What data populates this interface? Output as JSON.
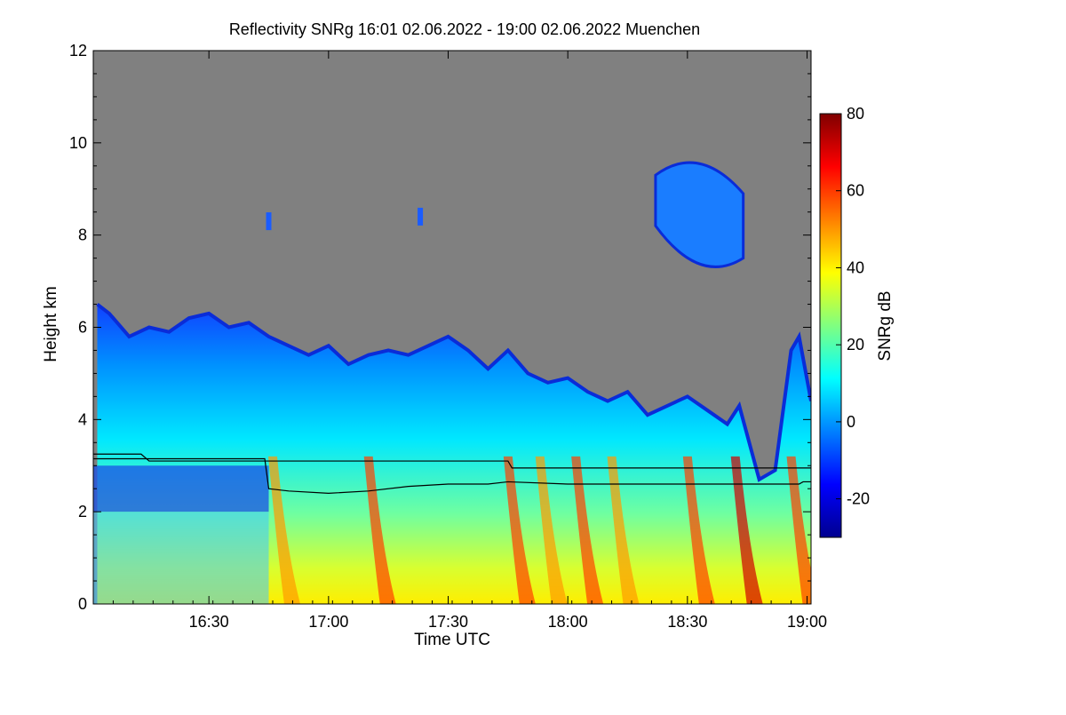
{
  "chart_data": {
    "type": "heatmap",
    "title": "Reflectivity SNRg   16:01 02.06.2022 - 19:00 02.06.2022 Muenchen",
    "xlabel": "Time UTC",
    "ylabel": "Height km",
    "x_range": [
      "16:01",
      "19:01"
    ],
    "x_ticks": [
      {
        "label": "16:30",
        "minutes": 30
      },
      {
        "label": "17:00",
        "minutes": 60
      },
      {
        "label": "17:30",
        "minutes": 90
      },
      {
        "label": "18:00",
        "minutes": 120
      },
      {
        "label": "18:30",
        "minutes": 150
      },
      {
        "label": "19:00",
        "minutes": 180
      }
    ],
    "ylim": [
      0,
      12
    ],
    "y_ticks": [
      "0",
      "2",
      "4",
      "6",
      "8",
      "10",
      "12"
    ],
    "no_signal_color": "#808080",
    "colorbar": {
      "label": "SNRg dB",
      "range": [
        -30,
        80
      ],
      "ticks": [
        "-20",
        "0",
        "20",
        "40",
        "60",
        "80"
      ],
      "colormap": [
        "#00008f",
        "#0000ff",
        "#0080ff",
        "#00ffff",
        "#80ff80",
        "#ffff00",
        "#ff8000",
        "#ff0000",
        "#800000"
      ]
    },
    "cloud_top_km": [
      [
        2,
        6.5
      ],
      [
        5,
        6.3
      ],
      [
        10,
        5.8
      ],
      [
        15,
        6.0
      ],
      [
        20,
        5.9
      ],
      [
        25,
        6.2
      ],
      [
        30,
        6.3
      ],
      [
        35,
        6.0
      ],
      [
        40,
        6.1
      ],
      [
        45,
        5.8
      ],
      [
        50,
        5.6
      ],
      [
        55,
        5.4
      ],
      [
        60,
        5.6
      ],
      [
        65,
        5.2
      ],
      [
        70,
        5.4
      ],
      [
        75,
        5.5
      ],
      [
        80,
        5.4
      ],
      [
        85,
        5.6
      ],
      [
        90,
        5.8
      ],
      [
        95,
        5.5
      ],
      [
        100,
        5.1
      ],
      [
        105,
        5.5
      ],
      [
        110,
        5.0
      ],
      [
        115,
        4.8
      ],
      [
        120,
        4.9
      ],
      [
        125,
        4.6
      ],
      [
        130,
        4.4
      ],
      [
        135,
        4.6
      ],
      [
        140,
        4.1
      ],
      [
        145,
        4.3
      ],
      [
        150,
        4.5
      ],
      [
        155,
        4.2
      ],
      [
        160,
        3.9
      ],
      [
        163,
        4.3
      ],
      [
        168,
        2.7
      ],
      [
        172,
        2.9
      ],
      [
        176,
        5.5
      ],
      [
        178,
        5.8
      ],
      [
        181,
        4.4
      ]
    ],
    "upper_cloud": {
      "start": "18:22",
      "end": "18:44",
      "base_km": 7.2,
      "top_km": 9.8
    },
    "line_series": [
      {
        "points": [
          [
            0,
            3.25
          ],
          [
            13,
            3.25
          ],
          [
            15,
            3.1
          ],
          [
            44,
            3.1
          ],
          [
            105,
            3.1
          ],
          [
            106,
            2.95
          ],
          [
            181,
            2.95
          ]
        ]
      },
      {
        "points": [
          [
            0,
            3.15
          ],
          [
            44,
            3.15
          ],
          [
            45,
            2.5
          ],
          [
            50,
            2.45
          ],
          [
            60,
            2.4
          ],
          [
            70,
            2.45
          ],
          [
            80,
            2.55
          ],
          [
            90,
            2.6
          ],
          [
            100,
            2.6
          ],
          [
            105,
            2.65
          ],
          [
            120,
            2.6
          ],
          [
            150,
            2.6
          ],
          [
            178,
            2.6
          ],
          [
            179,
            2.65
          ],
          [
            181,
            2.65
          ]
        ]
      }
    ],
    "precip_streaks_minutes": [
      48,
      72,
      107,
      115,
      124,
      133,
      152,
      164,
      178
    ],
    "intensity_peaks": [
      {
        "minutes": 48,
        "snr_db": 50
      },
      {
        "minutes": 72,
        "snr_db": 55
      },
      {
        "minutes": 107,
        "snr_db": 58
      },
      {
        "minutes": 115,
        "snr_db": 50
      },
      {
        "minutes": 124,
        "snr_db": 60
      },
      {
        "minutes": 133,
        "snr_db": 50
      },
      {
        "minutes": 152,
        "snr_db": 60
      },
      {
        "minutes": 164,
        "snr_db": 70
      },
      {
        "minutes": 178,
        "snr_db": 55
      }
    ]
  }
}
